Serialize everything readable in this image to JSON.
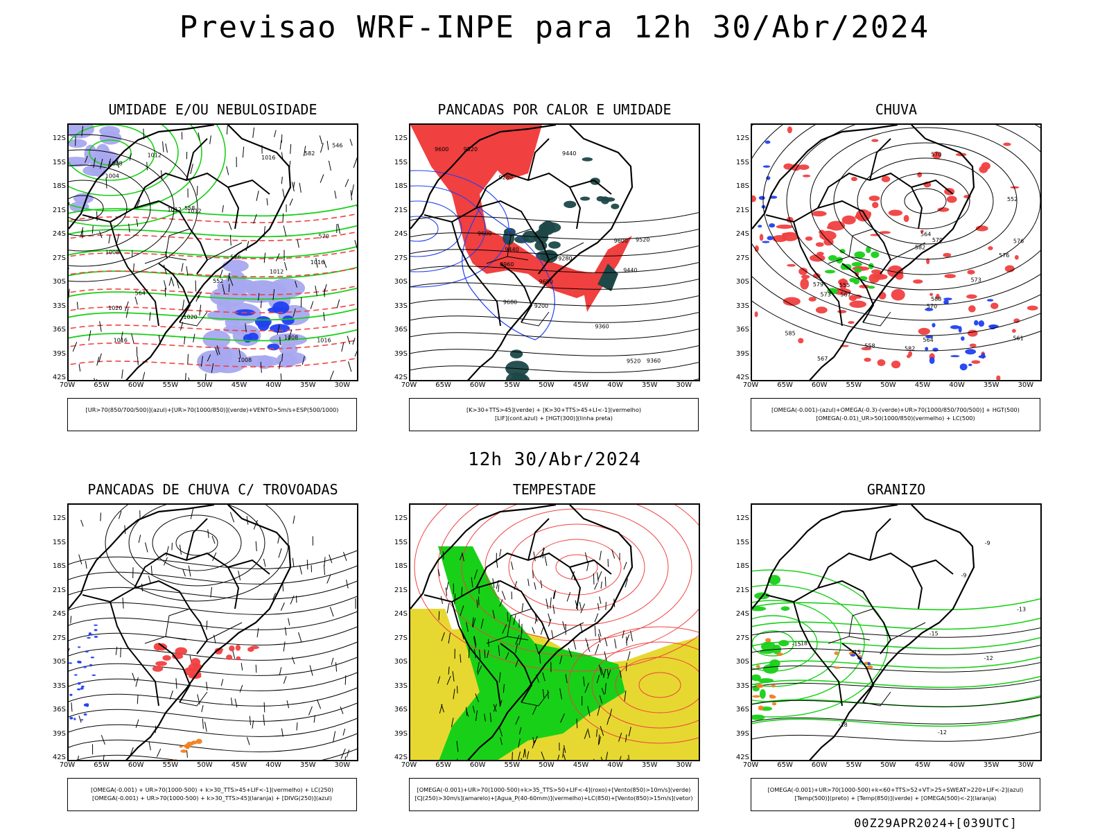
{
  "header": {
    "title": "Previsao WRF-INPE  para 12h 30/Abr/2024",
    "subtitle": "12h 30/Abr/2024",
    "footer": "00Z29APR2024+[039UTC]"
  },
  "axes": {
    "lat_labels": [
      "12S",
      "15S",
      "18S",
      "21S",
      "24S",
      "27S",
      "30S",
      "33S",
      "36S",
      "39S",
      "42S"
    ],
    "lon_labels": [
      "70W",
      "65W",
      "60W",
      "55W",
      "50W",
      "45W",
      "40W",
      "35W",
      "30W"
    ]
  },
  "colors": {
    "red": "#f04040",
    "green": "#18d018",
    "blue": "#2040f0",
    "lavender": "#a8a8f0",
    "darkgreen": "#1e4848",
    "yellow": "#e6d830",
    "orange": "#f08020",
    "black": "#000000"
  },
  "panels": [
    {
      "title": "UMIDADE E/OU NEBULOSIDADE",
      "legend": [
        "[UR>70(850/700/500)](azul)+[UR>70(1000/850)](verde)+VENTO>5m/s+ESP(500/1000)"
      ],
      "contour_labels": [
        "1012",
        "1016",
        "1016",
        "1012",
        "1012",
        "1008",
        "1020",
        "1016",
        "1012",
        "1008",
        "1004",
        "1008",
        "1008",
        "1016",
        "1020",
        "570",
        "552",
        "576",
        "558",
        "564",
        "546",
        "582"
      ]
    },
    {
      "title": "PANCADAS POR CALOR E UMIDADE",
      "legend": [
        "[K>30+TTS>45](verde)  +  [K>30+TTS>45+LI<-1](vermelho)",
        "[LIF](cont.azul)  +  [HGT(300)](linha preta)"
      ],
      "contour_labels": [
        "9680",
        "9600",
        "9520",
        "9440",
        "9360",
        "9280",
        "9200",
        "8960",
        "9680",
        "9600",
        "9520",
        "9440",
        "9600",
        "9520",
        "9440",
        "9360",
        "9280"
      ]
    },
    {
      "title": "CHUVA",
      "legend": [
        "[OMEGA(-0.001)-(azul)+OMEGA(-0.3)-(verde)+UR>70(1000/850/700/500)]  +  HGT(500)",
        "[OMEGA(-0.01)_UR>50(1000/850)(vermelho)  +  LC(500)"
      ],
      "contour_labels": [
        "588",
        "585",
        "582",
        "579",
        "576",
        "573",
        "570",
        "567",
        "564",
        "561",
        "558",
        "555",
        "552",
        "582",
        "579",
        "576",
        "573",
        "570",
        "567",
        "564"
      ]
    },
    {
      "title": "PANCADAS DE CHUVA C/ TROVOADAS",
      "legend": [
        "[OMEGA(-0.001)  +  UR>70(1000-500)  +  k>30_TTS>45+LIF<-1](vermelho)  +  LC(250)",
        "[OMEGA(-0.001)  +  UR>70(1000-500)  +  k>30_TTS>45](laranja)  +  [DIVG(250)](azul)"
      ],
      "contour_labels": []
    },
    {
      "title": "TEMPESTADE",
      "legend": [
        "[OMEGA(-0.001)+UR>70(1000-500)+k>35_TTS>50+LIF<-4](roxo)+[Vento(850)>10m/s](verde)",
        "[CJ(250)>30m/s](amarelo)+[Agua_P(40-60mm)](vermelho)+LC(850)+[Vento(850)>15m/s](vetor)"
      ],
      "contour_labels": []
    },
    {
      "title": "GRANIZO",
      "legend": [
        "[OMEGA(-0.001)+UR>70(1000-500)+k<60+TTS>52+VT>25+SWEAT>220+LIF<-2](azul)",
        "[Temp(500)](preto)  +  [Temp(850)](verde)  +  [OMEGA(500)<-2](laranja)"
      ],
      "contour_labels": [
        "-15",
        "-12",
        "-9",
        "-15",
        "-18",
        "-13",
        "-15",
        "-18",
        "-9",
        "-12"
      ]
    }
  ]
}
